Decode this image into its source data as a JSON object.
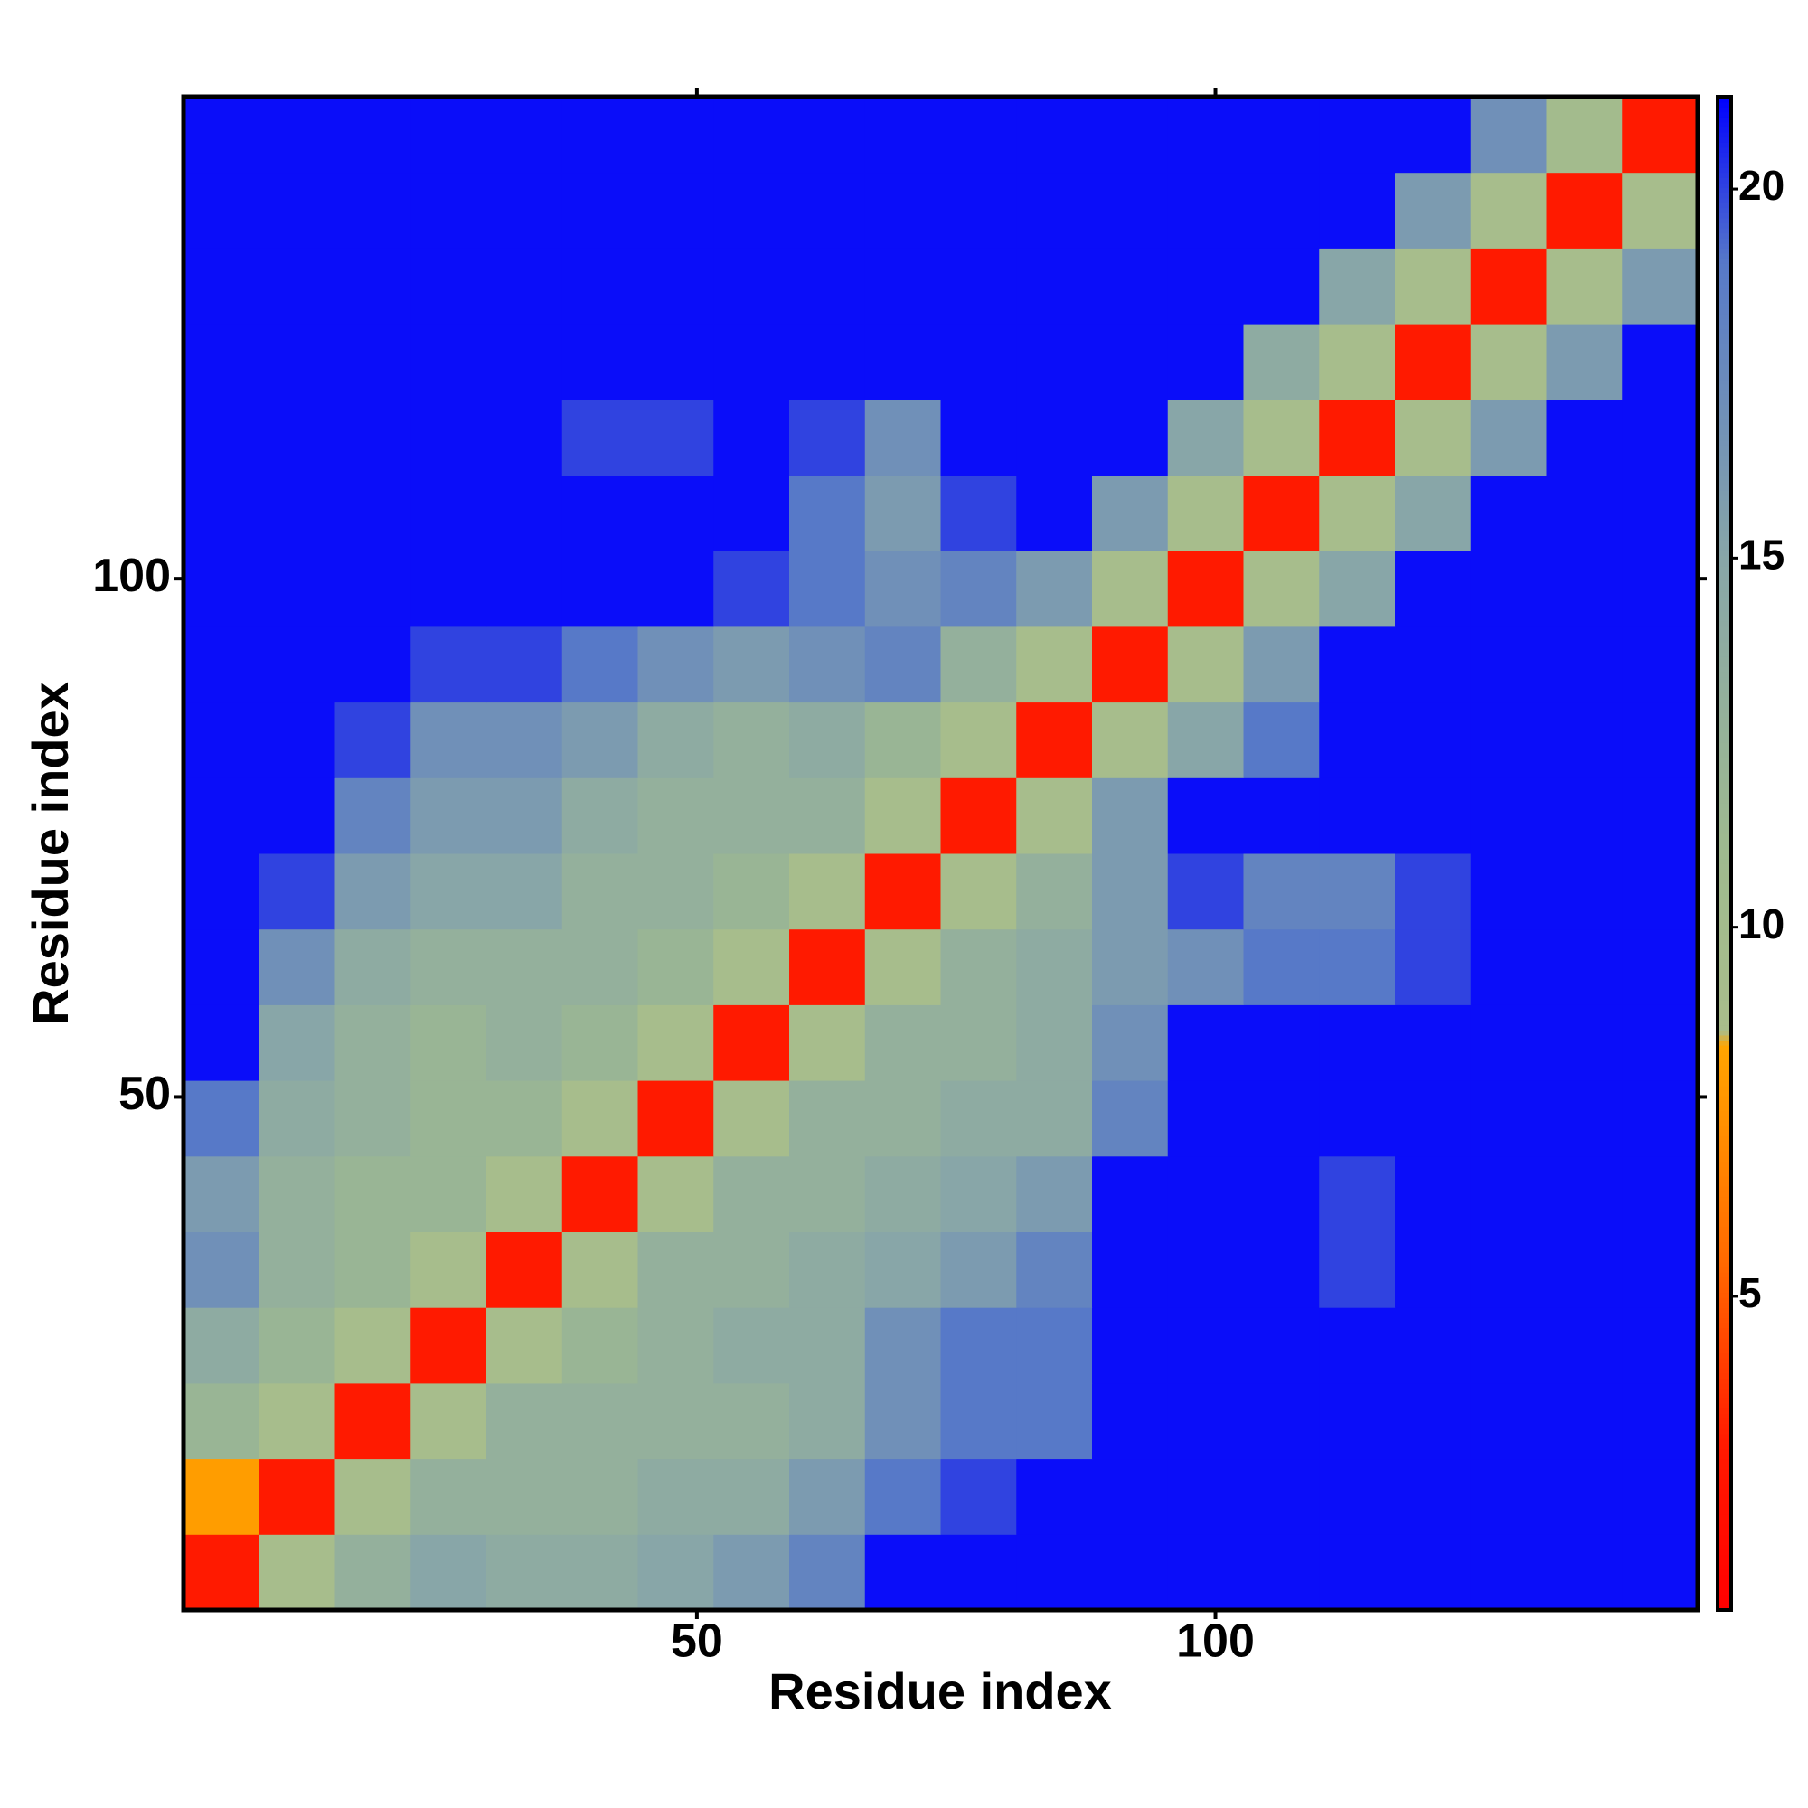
{
  "chart_data": {
    "type": "heatmap",
    "xlabel": "Residue index",
    "ylabel": "Residue index",
    "x_bins": [
      0.5,
      7.8,
      15.1,
      22.4,
      29.7,
      37,
      44.3,
      51.6,
      58.9,
      66.2,
      73.5,
      80.8,
      88.1,
      95.4,
      102.7,
      110,
      117.3,
      124.6,
      131.9,
      139.2,
      146.5
    ],
    "y_bins": [
      0.5,
      7.8,
      15.1,
      22.4,
      29.7,
      37,
      44.3,
      51.6,
      58.9,
      66.2,
      73.5,
      80.8,
      88.1,
      95.4,
      102.7,
      110,
      117.3,
      124.6,
      131.9,
      139.2,
      146.5
    ],
    "xlim": [
      0.5,
      146.5
    ],
    "ylim": [
      0.5,
      146.5
    ],
    "xticks": [
      50,
      100
    ],
    "yticks": [
      50,
      100
    ],
    "zlim": [
      0.75,
      21.25
    ],
    "zticks": [
      5,
      10,
      15,
      20
    ],
    "colorscale": [
      [
        0.75,
        "#ff0000"
      ],
      [
        3,
        "#ff1a00"
      ],
      [
        5.5,
        "#ff6a00"
      ],
      [
        8.4,
        "#ffa500"
      ],
      [
        8.6,
        "#a9bd8b"
      ],
      [
        11,
        "#9fba8f"
      ],
      [
        15,
        "#88a6a8"
      ],
      [
        19,
        "#5779c8"
      ],
      [
        21.25,
        "#0000ff"
      ]
    ],
    "z": [
      [
        3,
        9,
        13,
        15,
        14,
        14,
        15,
        16,
        18,
        21,
        21,
        21,
        21,
        21,
        21,
        21,
        21,
        21,
        21,
        21
      ],
      [
        8,
        3,
        9,
        13,
        13,
        13,
        14,
        14,
        16,
        19,
        20,
        21,
        21,
        21,
        21,
        21,
        21,
        21,
        21,
        21
      ],
      [
        12,
        9,
        3,
        9,
        13,
        13,
        13,
        13,
        14,
        17,
        19,
        19,
        21,
        21,
        21,
        21,
        21,
        21,
        21,
        21
      ],
      [
        14,
        12,
        9,
        3,
        9,
        12,
        13,
        14,
        14,
        17,
        19,
        19,
        21,
        21,
        21,
        21,
        21,
        21,
        21,
        21
      ],
      [
        17,
        13,
        12,
        9,
        3,
        9,
        13,
        13,
        14,
        15,
        16,
        18,
        21,
        21,
        21,
        20,
        21,
        21,
        21,
        21
      ],
      [
        16,
        13,
        12,
        12,
        9,
        3,
        9,
        13,
        13,
        14,
        15,
        16,
        21,
        21,
        21,
        20,
        21,
        21,
        21,
        21
      ],
      [
        19,
        14,
        13,
        12,
        12,
        9,
        3,
        9,
        13,
        13,
        14,
        14,
        18,
        21,
        21,
        21,
        21,
        21,
        21,
        21
      ],
      [
        21,
        15,
        13,
        12,
        13,
        12,
        9,
        3,
        9,
        13,
        13,
        14,
        17,
        21,
        21,
        21,
        21,
        21,
        21,
        21
      ],
      [
        21,
        17,
        14,
        13,
        13,
        13,
        12,
        9,
        3,
        9,
        13,
        14,
        16,
        17,
        19,
        19,
        20,
        21,
        21,
        21
      ],
      [
        21,
        20,
        16,
        15,
        15,
        13,
        13,
        12,
        9,
        3,
        9,
        13,
        16,
        20,
        18,
        18,
        20,
        21,
        21,
        21
      ],
      [
        21,
        21,
        18,
        16,
        16,
        14,
        13,
        13,
        13,
        9,
        3,
        9,
        16,
        21,
        21,
        21,
        21,
        21,
        21,
        21
      ],
      [
        21,
        21,
        20,
        17,
        17,
        16,
        14,
        13,
        14,
        12,
        9,
        3,
        9,
        15,
        19,
        21,
        21,
        21,
        21,
        21
      ],
      [
        21,
        21,
        21,
        20,
        20,
        19,
        17,
        16,
        17,
        18,
        13,
        9,
        3,
        9,
        16,
        21,
        21,
        21,
        21,
        21
      ],
      [
        21,
        21,
        21,
        21,
        21,
        21,
        21,
        20,
        19,
        17,
        18,
        16,
        9,
        3,
        9,
        15,
        21,
        21,
        21,
        21
      ],
      [
        21,
        21,
        21,
        21,
        21,
        21,
        21,
        21,
        19,
        16,
        20,
        21,
        16,
        9,
        3,
        9,
        15,
        21,
        21,
        21
      ],
      [
        21,
        21,
        21,
        21,
        21,
        20,
        20,
        21,
        20,
        17,
        21,
        21,
        21,
        15,
        9,
        3,
        9,
        16,
        21,
        21
      ],
      [
        21,
        21,
        21,
        21,
        21,
        21,
        21,
        21,
        21,
        21,
        21,
        21,
        21,
        21,
        14,
        9,
        3,
        9,
        16,
        21
      ],
      [
        21,
        21,
        21,
        21,
        21,
        21,
        21,
        21,
        21,
        21,
        21,
        21,
        21,
        21,
        21,
        15,
        9,
        3,
        9,
        16
      ],
      [
        21,
        21,
        21,
        21,
        21,
        21,
        21,
        21,
        21,
        21,
        21,
        21,
        21,
        21,
        21,
        21,
        16,
        9,
        3,
        9
      ],
      [
        21,
        21,
        21,
        21,
        21,
        21,
        21,
        21,
        21,
        21,
        21,
        21,
        21,
        21,
        21,
        21,
        21,
        17,
        10,
        3
      ]
    ]
  }
}
